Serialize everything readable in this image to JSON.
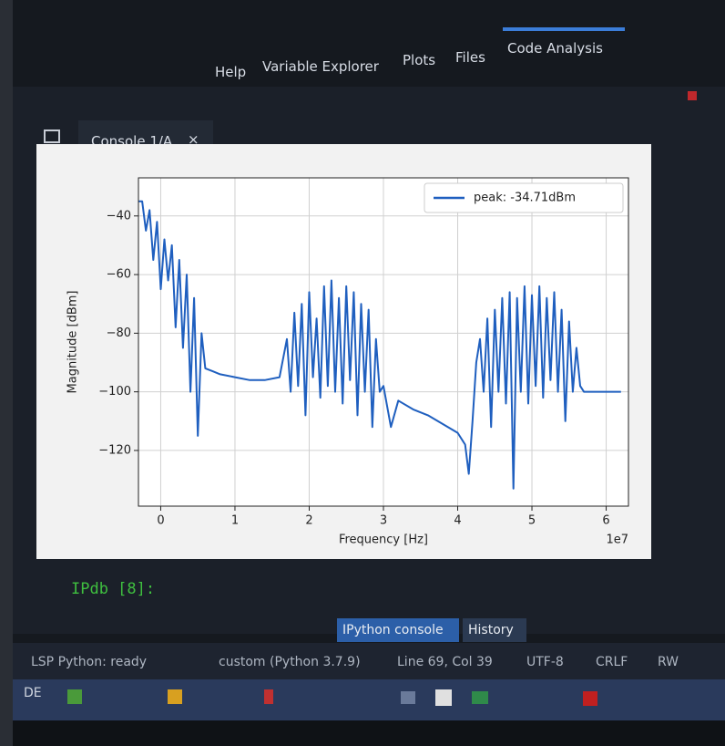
{
  "top_tabs": [
    "Help",
    "Variable Explorer",
    "Plots",
    "Files",
    "Code Analysis"
  ],
  "console_tab": "Console 1/A",
  "chart_data": {
    "type": "line",
    "x_label": "Frequency [Hz]",
    "y_label": "Magnitude [dBm]",
    "x_offset_label": "1e7",
    "xlim": [
      -0.3,
      6.3
    ],
    "ylim": [
      -139,
      -27
    ],
    "xticks": [
      0,
      1,
      2,
      3,
      4,
      5,
      6
    ],
    "yticks": [
      {
        "value": -40,
        "label": "−40"
      },
      {
        "value": -60,
        "label": "−60"
      },
      {
        "value": -80,
        "label": "−80"
      },
      {
        "value": -100,
        "label": "−100"
      },
      {
        "value": -120,
        "label": "−120"
      }
    ],
    "grid": true,
    "legend": "upper right",
    "series": [
      {
        "name": "peak: -34.71dBm",
        "color": "#1f5fbf",
        "x": [
          -0.3,
          -0.25,
          -0.2,
          -0.15,
          -0.1,
          -0.05,
          0,
          0.05,
          0.1,
          0.15,
          0.2,
          0.25,
          0.3,
          0.35,
          0.4,
          0.45,
          0.5,
          0.55,
          0.6,
          0.7,
          0.8,
          1.0,
          1.2,
          1.4,
          1.6,
          1.7,
          1.75,
          1.8,
          1.85,
          1.9,
          1.95,
          2.0,
          2.05,
          2.1,
          2.15,
          2.2,
          2.25,
          2.3,
          2.35,
          2.4,
          2.45,
          2.5,
          2.55,
          2.6,
          2.65,
          2.7,
          2.75,
          2.8,
          2.85,
          2.9,
          2.95,
          3.0,
          3.1,
          3.2,
          3.4,
          3.6,
          3.8,
          4.0,
          4.1,
          4.15,
          4.2,
          4.25,
          4.3,
          4.35,
          4.4,
          4.45,
          4.5,
          4.55,
          4.6,
          4.65,
          4.7,
          4.75,
          4.8,
          4.85,
          4.9,
          4.95,
          5.0,
          5.05,
          5.1,
          5.15,
          5.2,
          5.25,
          5.3,
          5.35,
          5.4,
          5.45,
          5.5,
          5.55,
          5.6,
          5.65,
          5.7,
          5.9,
          6.1,
          6.2
        ],
        "values": [
          -35,
          -35,
          -45,
          -38,
          -55,
          -42,
          -65,
          -48,
          -62,
          -50,
          -78,
          -55,
          -85,
          -60,
          -100,
          -68,
          -115,
          -80,
          -92,
          -93,
          -94,
          -95,
          -96,
          -96,
          -95,
          -82,
          -100,
          -73,
          -98,
          -70,
          -108,
          -66,
          -95,
          -75,
          -102,
          -64,
          -98,
          -62,
          -100,
          -68,
          -104,
          -64,
          -96,
          -66,
          -108,
          -70,
          -100,
          -72,
          -112,
          -82,
          -100,
          -98,
          -112,
          -103,
          -106,
          -108,
          -111,
          -114,
          -118,
          -128,
          -110,
          -90,
          -82,
          -100,
          -75,
          -112,
          -72,
          -100,
          -68,
          -104,
          -66,
          -133,
          -68,
          -100,
          -64,
          -104,
          -67,
          -98,
          -64,
          -102,
          -68,
          -96,
          -66,
          -100,
          -72,
          -110,
          -76,
          -100,
          -85,
          -98,
          -100,
          -100,
          -100,
          -100
        ]
      }
    ]
  },
  "prompt": "IPdb [8]:",
  "bottom_tabs": [
    "IPython console",
    "History"
  ],
  "status": [
    "LSP Python: ready",
    "custom (Python 3.7.9)",
    "Line 69, Col 39",
    "UTF-8",
    "CRLF",
    "RW"
  ],
  "taskbar_lang": "DE"
}
